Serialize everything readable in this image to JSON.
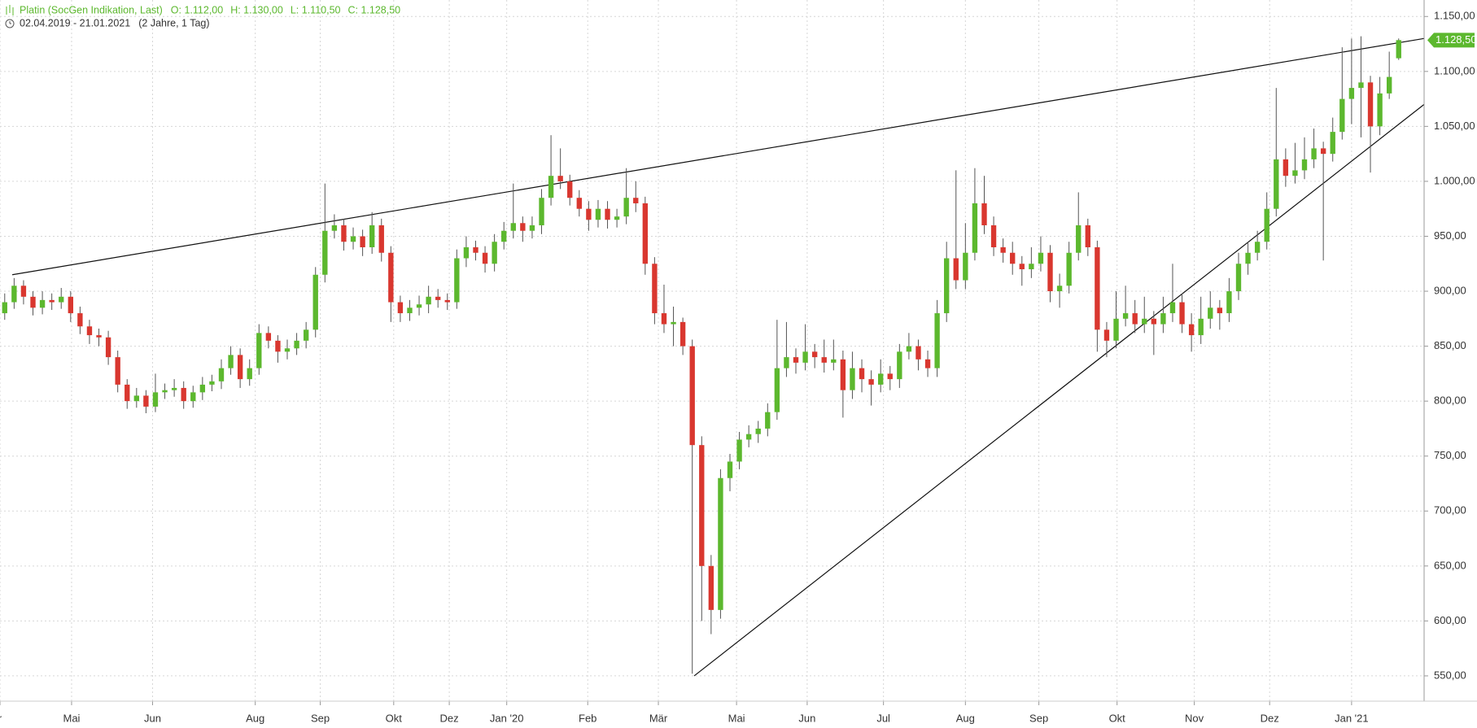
{
  "chart_data": {
    "type": "candlestick",
    "title": "Platin (SocGen Indikation, Last)",
    "ohlc_labels": [
      "O: 1.112,00",
      "H: 1.130,00",
      "L: 1.110,50",
      "C: 1.128,50"
    ],
    "date_range": "02.04.2019 - 21.01.2021",
    "period": "(2 Jahre, 1 Tag)",
    "last_value_label": "1.128,50",
    "up_color": "#5cb82e",
    "down_color": "#d9372f",
    "grid": true,
    "xlim": [
      -0.5,
      150.7
    ],
    "ylim": [
      527,
      1165
    ],
    "xticks": [
      {
        "value": -0.5,
        "label": "r"
      },
      {
        "value": 7.1,
        "label": "Mai"
      },
      {
        "value": 15.7,
        "label": "Jun"
      },
      {
        "value": 26.6,
        "label": "Aug"
      },
      {
        "value": 33.5,
        "label": "Sep"
      },
      {
        "value": 41.3,
        "label": "Okt"
      },
      {
        "value": 47.2,
        "label": "Dez"
      },
      {
        "value": 53.3,
        "label": "Jan '20"
      },
      {
        "value": 61.9,
        "label": "Feb"
      },
      {
        "value": 69.4,
        "label": "Mär"
      },
      {
        "value": 77.7,
        "label": "Mai"
      },
      {
        "value": 85.2,
        "label": "Jun"
      },
      {
        "value": 93.3,
        "label": "Jul"
      },
      {
        "value": 102,
        "label": "Aug"
      },
      {
        "value": 109.8,
        "label": "Sep"
      },
      {
        "value": 118.1,
        "label": "Okt"
      },
      {
        "value": 126.3,
        "label": "Nov"
      },
      {
        "value": 134.3,
        "label": "Dez"
      },
      {
        "value": 143,
        "label": "Jan '21"
      }
    ],
    "yticks": [
      {
        "value": 550,
        "label": "550,00"
      },
      {
        "value": 600,
        "label": "600,00"
      },
      {
        "value": 650,
        "label": "650,00"
      },
      {
        "value": 700,
        "label": "700,00"
      },
      {
        "value": 750,
        "label": "750,00"
      },
      {
        "value": 800,
        "label": "800,00"
      },
      {
        "value": 850,
        "label": "850,00"
      },
      {
        "value": 900,
        "label": "900,00"
      },
      {
        "value": 950,
        "label": "950,00"
      },
      {
        "value": 1000,
        "label": "1.000,00"
      },
      {
        "value": 1050,
        "label": "1.050,00"
      },
      {
        "value": 1100,
        "label": "1.100,00"
      },
      {
        "value": 1150,
        "label": "1.150,00"
      }
    ],
    "trendlines": [
      {
        "x": [
          0.8,
          150.7
        ],
        "y": [
          915,
          1130
        ]
      },
      {
        "x": [
          73.2,
          150.7
        ],
        "y": [
          550,
          1070
        ]
      }
    ],
    "ohlc": [
      [
        880,
        898,
        874,
        890
      ],
      [
        890,
        912,
        884,
        905
      ],
      [
        905,
        910,
        888,
        895
      ],
      [
        895,
        900,
        878,
        885
      ],
      [
        885,
        900,
        879,
        892
      ],
      [
        892,
        898,
        883,
        890
      ],
      [
        890,
        903,
        884,
        895
      ],
      [
        895,
        900,
        872,
        880
      ],
      [
        880,
        886,
        861,
        868
      ],
      [
        868,
        874,
        852,
        860
      ],
      [
        860,
        866,
        850,
        858
      ],
      [
        858,
        864,
        833,
        840
      ],
      [
        840,
        846,
        808,
        815
      ],
      [
        815,
        820,
        793,
        800
      ],
      [
        800,
        812,
        794,
        805
      ],
      [
        805,
        810,
        789,
        795
      ],
      [
        795,
        825,
        790,
        808
      ],
      [
        808,
        816,
        802,
        810
      ],
      [
        810,
        820,
        804,
        812
      ],
      [
        812,
        818,
        793,
        800
      ],
      [
        800,
        814,
        794,
        808
      ],
      [
        808,
        822,
        801,
        815
      ],
      [
        815,
        824,
        809,
        818
      ],
      [
        818,
        838,
        811,
        830
      ],
      [
        830,
        850,
        824,
        842
      ],
      [
        842,
        848,
        812,
        820
      ],
      [
        820,
        838,
        814,
        830
      ],
      [
        830,
        870,
        824,
        862
      ],
      [
        862,
        868,
        848,
        855
      ],
      [
        855,
        860,
        835,
        845
      ],
      [
        845,
        856,
        838,
        848
      ],
      [
        848,
        862,
        842,
        855
      ],
      [
        855,
        872,
        848,
        865
      ],
      [
        865,
        922,
        858,
        915
      ],
      [
        915,
        998,
        908,
        955
      ],
      [
        955,
        970,
        948,
        960
      ],
      [
        960,
        966,
        937,
        945
      ],
      [
        945,
        958,
        938,
        950
      ],
      [
        950,
        956,
        932,
        940
      ],
      [
        940,
        972,
        934,
        960
      ],
      [
        960,
        966,
        927,
        935
      ],
      [
        935,
        941,
        872,
        890
      ],
      [
        890,
        896,
        872,
        880
      ],
      [
        880,
        892,
        873,
        885
      ],
      [
        885,
        896,
        878,
        888
      ],
      [
        888,
        905,
        880,
        895
      ],
      [
        895,
        902,
        885,
        892
      ],
      [
        892,
        898,
        883,
        890
      ],
      [
        890,
        938,
        884,
        930
      ],
      [
        930,
        950,
        922,
        940
      ],
      [
        940,
        946,
        928,
        935
      ],
      [
        935,
        941,
        917,
        925
      ],
      [
        925,
        952,
        918,
        945
      ],
      [
        945,
        963,
        938,
        955
      ],
      [
        955,
        998,
        948,
        962
      ],
      [
        962,
        968,
        945,
        955
      ],
      [
        955,
        968,
        948,
        960
      ],
      [
        960,
        993,
        952,
        985
      ],
      [
        985,
        1042,
        978,
        1005
      ],
      [
        1005,
        1030,
        993,
        1000
      ],
      [
        1000,
        1006,
        978,
        985
      ],
      [
        985,
        992,
        968,
        975
      ],
      [
        975,
        982,
        955,
        965
      ],
      [
        965,
        983,
        958,
        975
      ],
      [
        975,
        982,
        957,
        965
      ],
      [
        965,
        975,
        958,
        968
      ],
      [
        968,
        1012,
        961,
        985
      ],
      [
        985,
        1000,
        972,
        980
      ],
      [
        980,
        986,
        915,
        925
      ],
      [
        925,
        931,
        870,
        880
      ],
      [
        880,
        906,
        862,
        870
      ],
      [
        870,
        886,
        850,
        872
      ],
      [
        872,
        876,
        842,
        850
      ],
      [
        850,
        856,
        552,
        760
      ],
      [
        760,
        768,
        600,
        650
      ],
      [
        650,
        660,
        588,
        610
      ],
      [
        610,
        738,
        602,
        730
      ],
      [
        730,
        752,
        718,
        745
      ],
      [
        745,
        772,
        738,
        765
      ],
      [
        765,
        778,
        758,
        770
      ],
      [
        770,
        782,
        762,
        775
      ],
      [
        775,
        798,
        768,
        790
      ],
      [
        790,
        874,
        783,
        830
      ],
      [
        830,
        872,
        822,
        840
      ],
      [
        840,
        848,
        825,
        835
      ],
      [
        835,
        870,
        828,
        845
      ],
      [
        845,
        852,
        830,
        840
      ],
      [
        840,
        856,
        826,
        835
      ],
      [
        835,
        856,
        828,
        838
      ],
      [
        838,
        846,
        785,
        810
      ],
      [
        810,
        845,
        802,
        830
      ],
      [
        830,
        838,
        808,
        820
      ],
      [
        820,
        828,
        796,
        815
      ],
      [
        815,
        838,
        808,
        825
      ],
      [
        825,
        832,
        810,
        820
      ],
      [
        820,
        852,
        812,
        845
      ],
      [
        845,
        862,
        838,
        850
      ],
      [
        850,
        856,
        828,
        838
      ],
      [
        838,
        846,
        822,
        830
      ],
      [
        830,
        892,
        822,
        880
      ],
      [
        880,
        945,
        872,
        930
      ],
      [
        930,
        1010,
        902,
        910
      ],
      [
        910,
        962,
        902,
        935
      ],
      [
        935,
        1012,
        928,
        980
      ],
      [
        980,
        1005,
        952,
        960
      ],
      [
        960,
        968,
        932,
        940
      ],
      [
        940,
        948,
        926,
        935
      ],
      [
        935,
        945,
        915,
        925
      ],
      [
        925,
        932,
        905,
        920
      ],
      [
        920,
        940,
        912,
        925
      ],
      [
        925,
        950,
        918,
        935
      ],
      [
        935,
        942,
        890,
        900
      ],
      [
        900,
        916,
        885,
        905
      ],
      [
        905,
        945,
        898,
        935
      ],
      [
        935,
        990,
        928,
        960
      ],
      [
        960,
        966,
        932,
        940
      ],
      [
        940,
        946,
        845,
        865
      ],
      [
        865,
        872,
        840,
        855
      ],
      [
        855,
        900,
        848,
        875
      ],
      [
        875,
        905,
        868,
        880
      ],
      [
        880,
        892,
        862,
        870
      ],
      [
        870,
        895,
        862,
        875
      ],
      [
        875,
        882,
        842,
        870
      ],
      [
        870,
        895,
        862,
        880
      ],
      [
        880,
        925,
        872,
        890
      ],
      [
        890,
        898,
        862,
        870
      ],
      [
        870,
        880,
        845,
        860
      ],
      [
        860,
        895,
        852,
        875
      ],
      [
        875,
        900,
        866,
        885
      ],
      [
        885,
        892,
        865,
        880
      ],
      [
        880,
        912,
        872,
        900
      ],
      [
        900,
        935,
        892,
        925
      ],
      [
        925,
        945,
        915,
        935
      ],
      [
        935,
        955,
        928,
        945
      ],
      [
        945,
        990,
        938,
        975
      ],
      [
        975,
        1085,
        968,
        1020
      ],
      [
        1020,
        1030,
        995,
        1005
      ],
      [
        1005,
        1035,
        998,
        1010
      ],
      [
        1010,
        1040,
        1002,
        1020
      ],
      [
        1020,
        1048,
        1012,
        1030
      ],
      [
        1030,
        1036,
        928,
        1025
      ],
      [
        1025,
        1058,
        1018,
        1045
      ],
      [
        1045,
        1122,
        1038,
        1075
      ],
      [
        1075,
        1130,
        1052,
        1085
      ],
      [
        1085,
        1132,
        1040,
        1090
      ],
      [
        1090,
        1096,
        1008,
        1050
      ],
      [
        1050,
        1095,
        1042,
        1080
      ],
      [
        1080,
        1118,
        1075,
        1095
      ],
      [
        1112,
        1130,
        1110.5,
        1128.5
      ]
    ]
  }
}
